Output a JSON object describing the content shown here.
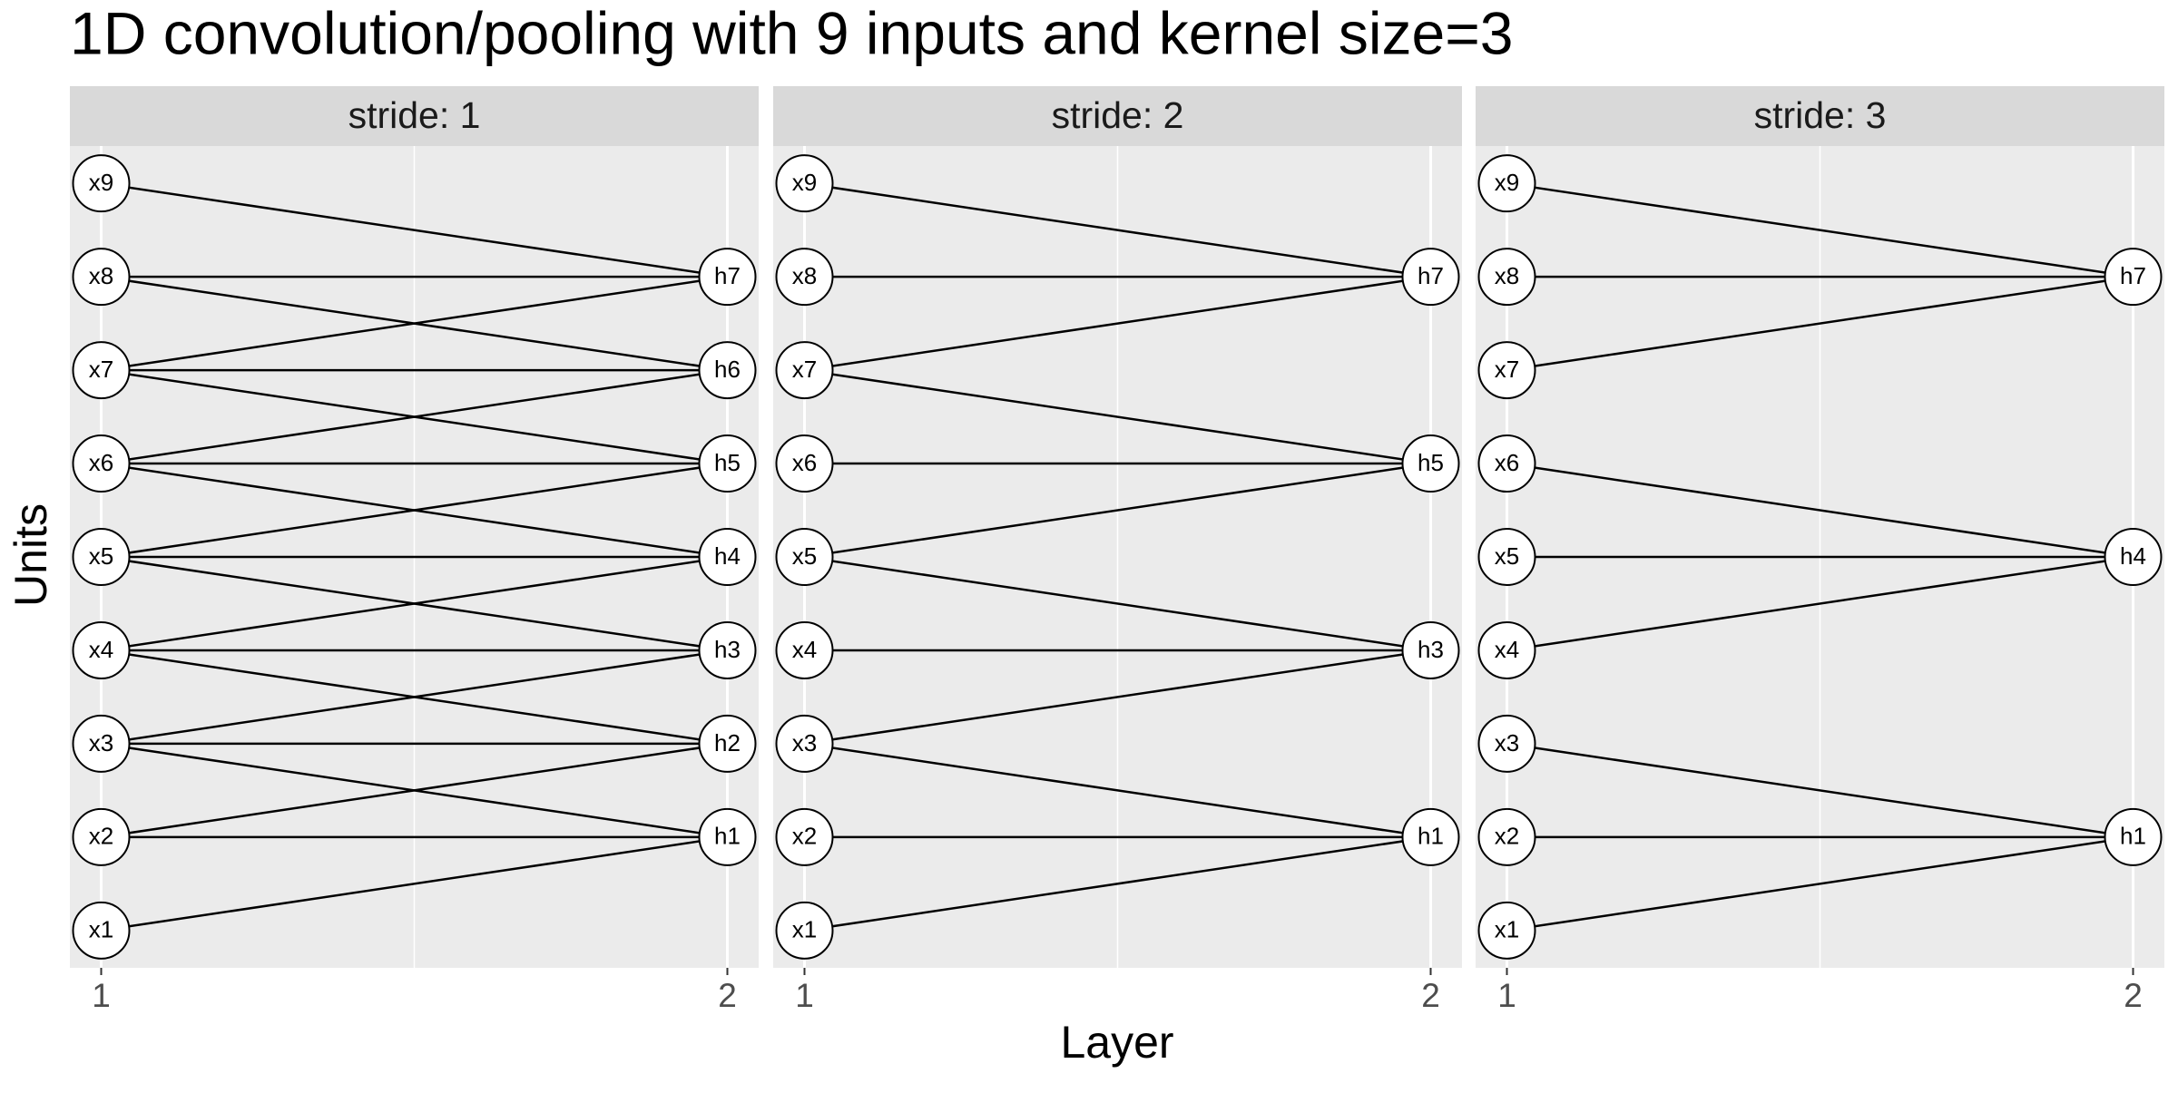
{
  "chart_data": {
    "type": "network",
    "title": "1D convolution/pooling with 9 inputs and kernel size=3",
    "xlabel": "Layer",
    "ylabel": "Units",
    "xlim": [
      0.95,
      2.05
    ],
    "ylim": [
      0.6,
      9.4
    ],
    "xticks": [
      1,
      2
    ],
    "xminor": [
      1.5
    ],
    "grid": true,
    "panel_color": "#ebebeb",
    "strip_color": "#d9d9d9",
    "edge_color": "#000000",
    "node_fill": "#ffffff",
    "facets": [
      {
        "label": "stride: 1",
        "nodes": [
          {
            "label": "x1",
            "layer": 1,
            "unit": 1
          },
          {
            "label": "x2",
            "layer": 1,
            "unit": 2
          },
          {
            "label": "x3",
            "layer": 1,
            "unit": 3
          },
          {
            "label": "x4",
            "layer": 1,
            "unit": 4
          },
          {
            "label": "x5",
            "layer": 1,
            "unit": 5
          },
          {
            "label": "x6",
            "layer": 1,
            "unit": 6
          },
          {
            "label": "x7",
            "layer": 1,
            "unit": 7
          },
          {
            "label": "x8",
            "layer": 1,
            "unit": 8
          },
          {
            "label": "x9",
            "layer": 1,
            "unit": 9
          },
          {
            "label": "h1",
            "layer": 2,
            "unit": 2
          },
          {
            "label": "h2",
            "layer": 2,
            "unit": 3
          },
          {
            "label": "h3",
            "layer": 2,
            "unit": 4
          },
          {
            "label": "h4",
            "layer": 2,
            "unit": 5
          },
          {
            "label": "h5",
            "layer": 2,
            "unit": 6
          },
          {
            "label": "h6",
            "layer": 2,
            "unit": 7
          },
          {
            "label": "h7",
            "layer": 2,
            "unit": 8
          }
        ],
        "edges": [
          [
            0,
            9
          ],
          [
            1,
            9
          ],
          [
            2,
            9
          ],
          [
            1,
            10
          ],
          [
            2,
            10
          ],
          [
            3,
            10
          ],
          [
            2,
            11
          ],
          [
            3,
            11
          ],
          [
            4,
            11
          ],
          [
            3,
            12
          ],
          [
            4,
            12
          ],
          [
            5,
            12
          ],
          [
            4,
            13
          ],
          [
            5,
            13
          ],
          [
            6,
            13
          ],
          [
            5,
            14
          ],
          [
            6,
            14
          ],
          [
            7,
            14
          ],
          [
            6,
            15
          ],
          [
            7,
            15
          ],
          [
            8,
            15
          ]
        ]
      },
      {
        "label": "stride: 2",
        "nodes": [
          {
            "label": "x1",
            "layer": 1,
            "unit": 1
          },
          {
            "label": "x2",
            "layer": 1,
            "unit": 2
          },
          {
            "label": "x3",
            "layer": 1,
            "unit": 3
          },
          {
            "label": "x4",
            "layer": 1,
            "unit": 4
          },
          {
            "label": "x5",
            "layer": 1,
            "unit": 5
          },
          {
            "label": "x6",
            "layer": 1,
            "unit": 6
          },
          {
            "label": "x7",
            "layer": 1,
            "unit": 7
          },
          {
            "label": "x8",
            "layer": 1,
            "unit": 8
          },
          {
            "label": "x9",
            "layer": 1,
            "unit": 9
          },
          {
            "label": "h1",
            "layer": 2,
            "unit": 2
          },
          {
            "label": "h3",
            "layer": 2,
            "unit": 4
          },
          {
            "label": "h5",
            "layer": 2,
            "unit": 6
          },
          {
            "label": "h7",
            "layer": 2,
            "unit": 8
          }
        ],
        "edges": [
          [
            0,
            9
          ],
          [
            1,
            9
          ],
          [
            2,
            9
          ],
          [
            2,
            10
          ],
          [
            3,
            10
          ],
          [
            4,
            10
          ],
          [
            4,
            11
          ],
          [
            5,
            11
          ],
          [
            6,
            11
          ],
          [
            6,
            12
          ],
          [
            7,
            12
          ],
          [
            8,
            12
          ]
        ]
      },
      {
        "label": "stride: 3",
        "nodes": [
          {
            "label": "x1",
            "layer": 1,
            "unit": 1
          },
          {
            "label": "x2",
            "layer": 1,
            "unit": 2
          },
          {
            "label": "x3",
            "layer": 1,
            "unit": 3
          },
          {
            "label": "x4",
            "layer": 1,
            "unit": 4
          },
          {
            "label": "x5",
            "layer": 1,
            "unit": 5
          },
          {
            "label": "x6",
            "layer": 1,
            "unit": 6
          },
          {
            "label": "x7",
            "layer": 1,
            "unit": 7
          },
          {
            "label": "x8",
            "layer": 1,
            "unit": 8
          },
          {
            "label": "x9",
            "layer": 1,
            "unit": 9
          },
          {
            "label": "h1",
            "layer": 2,
            "unit": 2
          },
          {
            "label": "h4",
            "layer": 2,
            "unit": 5
          },
          {
            "label": "h7",
            "layer": 2,
            "unit": 8
          }
        ],
        "edges": [
          [
            0,
            9
          ],
          [
            1,
            9
          ],
          [
            2,
            9
          ],
          [
            3,
            10
          ],
          [
            4,
            10
          ],
          [
            5,
            10
          ],
          [
            6,
            11
          ],
          [
            7,
            11
          ],
          [
            8,
            11
          ]
        ]
      }
    ]
  }
}
